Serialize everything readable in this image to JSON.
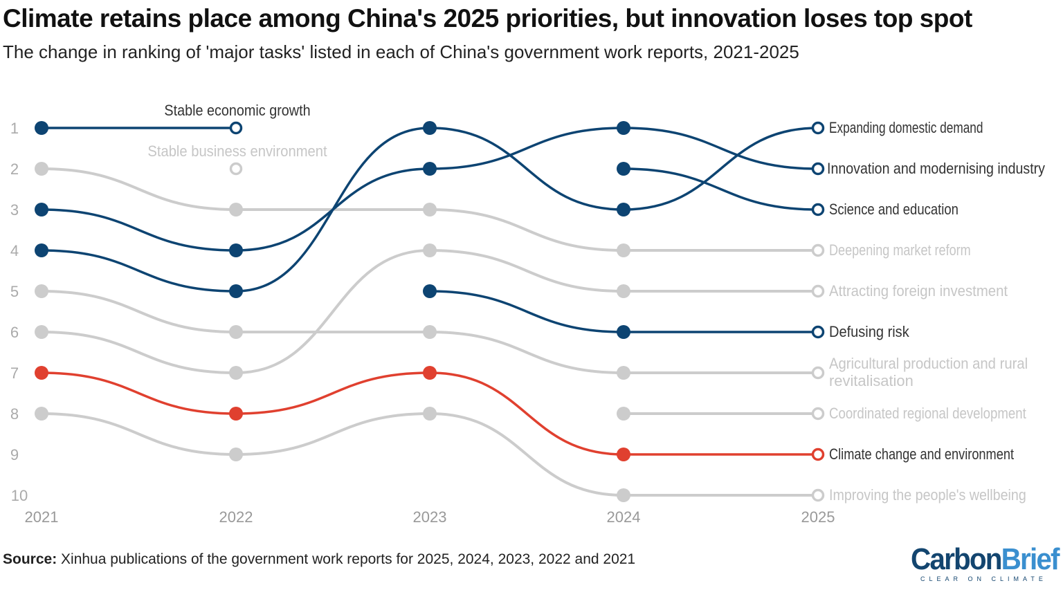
{
  "title": "Climate retains place among China's 2025 priorities, but innovation loses top spot",
  "subtitle": "The change in ranking of 'major tasks' listed in each of China's government work reports, 2021-2025",
  "source": {
    "label": "Source:",
    "text": "Xinhua publications of the government work reports for 2025, 2024, 2023, 2022 and 2021"
  },
  "logo": {
    "part1": "Carbon",
    "part2": "Brief",
    "tagline": "CLEAR ON CLIMATE"
  },
  "colors": {
    "highlight": "#0d4472",
    "climate": "#e0402f",
    "muted": "#cccccc"
  },
  "chart_data": {
    "type": "line",
    "subtype": "bump",
    "x": [
      "2021",
      "2022",
      "2023",
      "2024",
      "2025"
    ],
    "y_ticks": [
      "1",
      "2",
      "3",
      "4",
      "5",
      "6",
      "7",
      "8",
      "9",
      "10"
    ],
    "ylim": [
      1,
      10
    ],
    "y_reversed": true,
    "grid": false,
    "series": [
      {
        "name": "Stable economic growth",
        "ranks": [
          1,
          1,
          null,
          null,
          null
        ],
        "style": "highlight",
        "label_position": "above"
      },
      {
        "name": "Stable business environment",
        "ranks": [
          null,
          2,
          null,
          null,
          null
        ],
        "style": "muted",
        "label_position": "above"
      },
      {
        "name": "Deepening market reform",
        "ranks": [
          2,
          3,
          3,
          4,
          4
        ],
        "style": "muted"
      },
      {
        "name": "Attracting foreign investment",
        "ranks": [
          6,
          7,
          4,
          5,
          5
        ],
        "style": "muted"
      },
      {
        "name": "Agricultural production and rural revitalisation",
        "ranks": [
          5,
          6,
          6,
          7,
          7
        ],
        "style": "muted"
      },
      {
        "name": "Coordinated regional development",
        "ranks": [
          null,
          null,
          null,
          8,
          8
        ],
        "style": "muted"
      },
      {
        "name": "Improving the people's wellbeing",
        "ranks": [
          8,
          9,
          8,
          10,
          10
        ],
        "style": "muted"
      },
      {
        "name": "Expanding domestic demand",
        "ranks": [
          4,
          5,
          1,
          3,
          1
        ],
        "style": "highlight"
      },
      {
        "name": "Innovation and modernising industry",
        "ranks": [
          3,
          4,
          2,
          1,
          2
        ],
        "style": "highlight"
      },
      {
        "name": "Science and education",
        "ranks": [
          null,
          null,
          null,
          2,
          3
        ],
        "style": "highlight"
      },
      {
        "name": "Defusing risk",
        "ranks": [
          null,
          null,
          5,
          6,
          6
        ],
        "style": "highlight"
      },
      {
        "name": "Climate change and environment",
        "ranks": [
          7,
          8,
          7,
          9,
          9
        ],
        "style": "climate"
      }
    ]
  }
}
